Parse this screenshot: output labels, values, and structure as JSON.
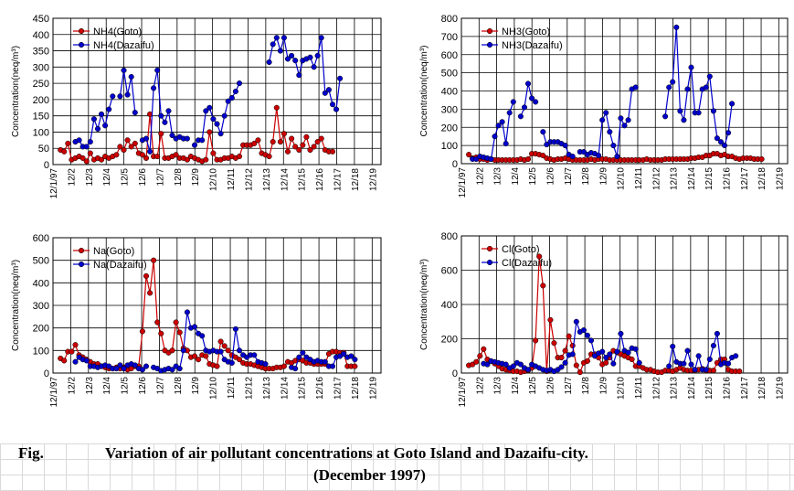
{
  "caption": {
    "fig": "Fig.",
    "line1": "Variation of air pollutant concentrations at Goto Island and Dazaifu-city.",
    "line2": "(December 1997)"
  },
  "colors": {
    "goto": "#cc0000",
    "dazaifu": "#0000cc"
  },
  "chart_data": [
    {
      "type": "line",
      "ylabel": "Concentration(neq/m³)",
      "ylim": [
        0,
        450
      ],
      "yticks": [
        0,
        50,
        100,
        150,
        200,
        250,
        300,
        350,
        400,
        450
      ],
      "xlim": [
        0,
        88
      ],
      "x_tick_labels": [
        "12/1/97",
        "12/2",
        "12/3",
        "12/4",
        "12/5",
        "12/6",
        "12/7",
        "12/8",
        "12/9",
        "12/10",
        "12/11",
        "12/12",
        "12/13",
        "12/14",
        "12/15",
        "12/16",
        "12/17",
        "12/18",
        "12/19"
      ],
      "legend_position": "top-left",
      "series": [
        {
          "name": "NH4(Goto)",
          "color": "#cc0000",
          "values": [
            null,
            null,
            45,
            40,
            65,
            15,
            20,
            25,
            20,
            10,
            35,
            15,
            20,
            15,
            25,
            20,
            25,
            30,
            55,
            45,
            75,
            55,
            65,
            35,
            30,
            20,
            155,
            25,
            25,
            95,
            20,
            20,
            25,
            30,
            20,
            20,
            15,
            25,
            20,
            15,
            10,
            15,
            100,
            35,
            15,
            15,
            20,
            20,
            25,
            20,
            25,
            60,
            60,
            60,
            65,
            75,
            35,
            30,
            25,
            70,
            175,
            70,
            95,
            40,
            80,
            55,
            45,
            60,
            85,
            45,
            55,
            70,
            80,
            45,
            40,
            40
          ]
        },
        {
          "name": "NH4(Dazaifu)",
          "color": "#0000cc",
          "values": [
            null,
            null,
            null,
            null,
            null,
            null,
            70,
            75,
            55,
            55,
            70,
            140,
            110,
            155,
            120,
            170,
            210,
            null,
            210,
            290,
            215,
            270,
            160,
            null,
            75,
            80,
            40,
            235,
            290,
            150,
            130,
            165,
            90,
            80,
            85,
            80,
            80,
            null,
            60,
            75,
            75,
            165,
            175,
            140,
            125,
            95,
            150,
            195,
            205,
            225,
            250,
            null,
            null,
            null,
            null,
            null,
            null,
            null,
            315,
            370,
            390,
            350,
            390,
            325,
            335,
            320,
            275,
            320,
            325,
            330,
            300,
            335,
            390,
            220,
            230,
            185,
            170,
            265
          ]
        }
      ]
    },
    {
      "type": "line",
      "ylabel": "Concentration(neq/m³)",
      "ylim": [
        0,
        800
      ],
      "yticks": [
        0,
        100,
        200,
        300,
        400,
        500,
        600,
        700,
        800
      ],
      "xlim": [
        0,
        88
      ],
      "x_tick_labels": [
        "12/1/97",
        "12/2",
        "12/3",
        "12/4",
        "12/5",
        "12/6",
        "12/7",
        "12/8",
        "12/9",
        "12/10",
        "12/11",
        "12/12",
        "12/13",
        "12/14",
        "12/15",
        "12/16",
        "12/17",
        "12/18",
        "12/19"
      ],
      "legend_position": "top-left",
      "series": [
        {
          "name": "NH3(Goto)",
          "color": "#cc0000",
          "values": [
            null,
            null,
            50,
            30,
            35,
            25,
            25,
            20,
            25,
            20,
            20,
            20,
            20,
            20,
            20,
            20,
            25,
            20,
            25,
            55,
            55,
            50,
            45,
            30,
            25,
            20,
            25,
            25,
            30,
            25,
            20,
            20,
            20,
            20,
            20,
            25,
            20,
            25,
            25,
            25,
            20,
            20,
            20,
            20,
            20,
            20,
            20,
            20,
            20,
            20,
            25,
            20,
            20,
            20,
            20,
            25,
            25,
            25,
            25,
            25,
            25,
            25,
            30,
            30,
            35,
            35,
            45,
            45,
            55,
            55,
            45,
            50,
            40,
            40,
            30,
            25,
            30,
            30,
            30,
            25,
            25,
            25
          ]
        },
        {
          "name": "NH3(Dazaifu)",
          "color": "#0000cc",
          "values": [
            null,
            null,
            null,
            25,
            25,
            40,
            35,
            30,
            25,
            150,
            210,
            230,
            110,
            280,
            340,
            null,
            260,
            310,
            440,
            360,
            340,
            null,
            175,
            105,
            120,
            120,
            120,
            110,
            100,
            50,
            40,
            null,
            65,
            65,
            50,
            60,
            55,
            45,
            240,
            280,
            175,
            100,
            40,
            250,
            210,
            240,
            410,
            420,
            null,
            null,
            null,
            null,
            null,
            null,
            null,
            260,
            420,
            450,
            750,
            290,
            240,
            410,
            530,
            280,
            280,
            410,
            420,
            480,
            290,
            140,
            120,
            100,
            170,
            330
          ]
        }
      ]
    },
    {
      "type": "line",
      "ylabel": "Concentration(neq/m³)",
      "ylim": [
        0,
        600
      ],
      "yticks": [
        0,
        100,
        200,
        300,
        400,
        500,
        600
      ],
      "xlim": [
        0,
        88
      ],
      "x_tick_labels": [
        "12/1/97",
        "12/2",
        "12/3",
        "12/4",
        "12/5",
        "12/6",
        "12/7",
        "12/8",
        "12/9",
        "12/10",
        "12/11",
        "12/12",
        "12/13",
        "12/14",
        "12/15",
        "12/16",
        "12/17",
        "12/18",
        "12/19"
      ],
      "legend_position": "top-left",
      "series": [
        {
          "name": "Na(Goto)",
          "color": "#cc0000",
          "values": [
            null,
            null,
            65,
            55,
            95,
            95,
            125,
            80,
            70,
            60,
            50,
            40,
            40,
            30,
            25,
            20,
            20,
            25,
            20,
            25,
            15,
            20,
            30,
            30,
            185,
            430,
            355,
            500,
            225,
            175,
            100,
            90,
            100,
            225,
            180,
            110,
            100,
            70,
            75,
            60,
            80,
            75,
            40,
            35,
            30,
            140,
            120,
            100,
            80,
            70,
            60,
            45,
            40,
            40,
            35,
            30,
            25,
            20,
            20,
            20,
            25,
            25,
            30,
            50,
            45,
            55,
            60,
            55,
            45,
            45,
            40,
            40,
            40,
            40,
            85,
            95,
            95,
            90,
            90,
            30,
            30,
            30
          ]
        },
        {
          "name": "Na(Dazaifu)",
          "color": "#0000cc",
          "values": [
            null,
            null,
            null,
            null,
            null,
            null,
            50,
            70,
            60,
            55,
            30,
            30,
            25,
            30,
            35,
            30,
            20,
            20,
            35,
            20,
            35,
            40,
            35,
            20,
            15,
            30,
            null,
            25,
            20,
            10,
            15,
            20,
            15,
            30,
            20,
            100,
            270,
            200,
            205,
            175,
            165,
            100,
            95,
            100,
            95,
            95,
            60,
            50,
            45,
            195,
            100,
            80,
            70,
            80,
            80,
            50,
            45,
            40,
            null,
            null,
            null,
            null,
            null,
            null,
            25,
            20,
            70,
            90,
            70,
            60,
            50,
            55,
            50,
            50,
            30,
            30,
            70,
            75,
            85,
            70,
            75,
            60
          ]
        }
      ]
    },
    {
      "type": "line",
      "ylabel": "Concentration(neq/m³)",
      "ylim": [
        0,
        800
      ],
      "yticks": [
        0,
        200,
        400,
        600,
        800
      ],
      "xlim": [
        0,
        88
      ],
      "x_tick_labels": [
        "12/1/97",
        "12/2",
        "12/3",
        "12/4",
        "12/5",
        "12/6",
        "12/7",
        "12/8",
        "12/9",
        "12/10",
        "12/11",
        "12/12",
        "12/13",
        "12/14",
        "12/15",
        "12/16",
        "12/17",
        "12/18",
        "12/19"
      ],
      "legend_position": "top-left",
      "series": [
        {
          "name": "Cl(Goto)",
          "color": "#cc0000",
          "values": [
            null,
            null,
            45,
            50,
            65,
            100,
            140,
            80,
            70,
            55,
            40,
            25,
            20,
            15,
            10,
            10,
            5,
            10,
            15,
            30,
            190,
            680,
            510,
            10,
            310,
            175,
            90,
            90,
            130,
            215,
            160,
            45,
            5,
            60,
            70,
            110,
            110,
            90,
            50,
            60,
            90,
            130,
            120,
            110,
            100,
            90,
            80,
            40,
            40,
            30,
            20,
            20,
            10,
            5,
            5,
            15,
            15,
            10,
            20,
            30,
            20,
            15,
            15,
            15,
            20,
            25,
            15,
            15,
            15,
            60,
            80,
            80,
            20,
            10,
            10,
            10
          ]
        },
        {
          "name": "Cl(Dazaifu)",
          "color": "#0000cc",
          "values": [
            null,
            null,
            null,
            null,
            null,
            null,
            55,
            50,
            70,
            65,
            60,
            55,
            50,
            30,
            40,
            60,
            50,
            30,
            20,
            50,
            40,
            30,
            20,
            15,
            20,
            10,
            20,
            35,
            60,
            105,
            110,
            300,
            240,
            250,
            220,
            190,
            100,
            115,
            125,
            90,
            110,
            55,
            125,
            230,
            130,
            120,
            145,
            140,
            60,
            null,
            null,
            null,
            null,
            null,
            null,
            null,
            40,
            155,
            65,
            55,
            55,
            130,
            50,
            20,
            100,
            20,
            20,
            80,
            160,
            230,
            50,
            60,
            55,
            90,
            100
          ]
        }
      ]
    }
  ]
}
